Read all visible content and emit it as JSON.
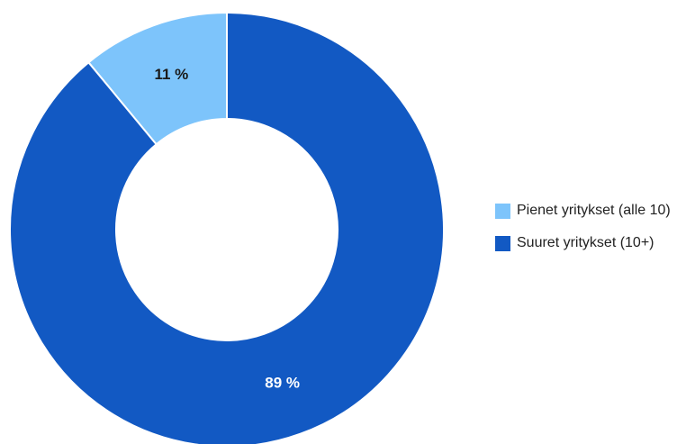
{
  "chart_data": {
    "type": "pie",
    "donut": true,
    "title": "",
    "categories": [
      "Pienet yritykset (alle 10)",
      "Suuret yritykset (10+)"
    ],
    "values": [
      11,
      89
    ],
    "labels": [
      "11 %",
      "89 %"
    ],
    "colors": [
      "#7dc4fb",
      "#1259c3"
    ],
    "label_colors": [
      "#1a1a1a",
      "#ffffff"
    ],
    "legend_position": "right"
  },
  "legend": {
    "items": [
      {
        "label": "Pienet yritykset (alle 10)",
        "color": "#7dc4fb"
      },
      {
        "label": "Suuret yritykset (10+)",
        "color": "#1259c3"
      }
    ]
  }
}
